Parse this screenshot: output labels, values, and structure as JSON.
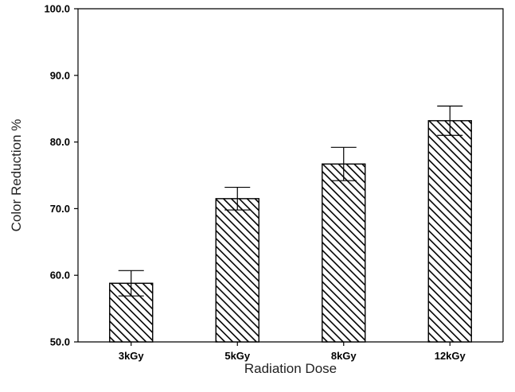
{
  "chart_data": {
    "type": "bar",
    "categories": [
      "3kGy",
      "5kGy",
      "8kGy",
      "12kGy"
    ],
    "values": [
      58.8,
      71.5,
      76.7,
      83.2
    ],
    "error": [
      1.9,
      1.7,
      2.5,
      2.2
    ],
    "title": "",
    "xlabel": "Radiation Dose",
    "ylabel": "Color Reduction %",
    "ylim": [
      50.0,
      100.0
    ],
    "yticks": [
      "50.0",
      "60.0",
      "70.0",
      "80.0",
      "90.0",
      "100.0"
    ],
    "grid": false,
    "legend": "none",
    "bar_fill": "hatched",
    "colors": {
      "bar_stroke": "#000000",
      "hatch": "#000000",
      "background": "#ffffff"
    }
  }
}
